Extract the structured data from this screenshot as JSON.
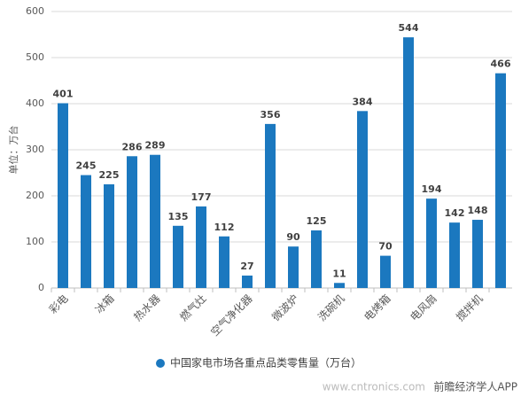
{
  "chart_data": {
    "type": "bar",
    "ylabel": "单位：万台",
    "categories": [
      "彩电",
      null,
      "冰箱",
      null,
      "热水器",
      null,
      "燃气灶",
      null,
      "空气净化器",
      null,
      "微波炉",
      null,
      "洗碗机",
      null,
      "电烤箱",
      null,
      "电风扇",
      null,
      "搅拌机",
      null
    ],
    "series": [
      {
        "name": "中国家电市场各重点品类零售量（万台）",
        "color": "#1b78bf",
        "values": [
          401,
          245,
          225,
          286,
          289,
          135,
          177,
          112,
          27,
          356,
          90,
          125,
          11,
          384,
          70,
          544,
          194,
          142,
          148,
          466
        ]
      }
    ],
    "ylim": [
      0,
      600
    ],
    "yticks": [
      0,
      100,
      200,
      300,
      400,
      500,
      600
    ],
    "grid": true,
    "legend": "bottom",
    "watermarks": [
      "www.cntronics.com",
      "前瞻经济学人APP"
    ]
  }
}
